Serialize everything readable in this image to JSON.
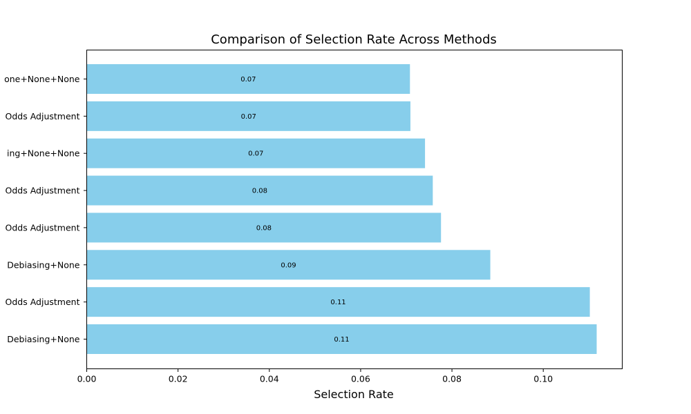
{
  "chart_data": {
    "type": "bar",
    "orientation": "horizontal",
    "title": "Comparison of Selection Rate Across Methods",
    "xlabel": "Selection Rate",
    "ylabel": "",
    "categories": [
      "one+None+None",
      "Odds Adjustment",
      "ing+None+None",
      "Odds Adjustment",
      "Odds Adjustment",
      "Debiasing+None",
      "Odds Adjustment",
      "Debiasing+None"
    ],
    "values": [
      0.0708,
      0.0709,
      0.0741,
      0.0758,
      0.0776,
      0.0884,
      0.1102,
      0.1117
    ],
    "data_labels": [
      "0.07",
      "0.07",
      "0.07",
      "0.08",
      "0.08",
      "0.09",
      "0.11",
      "0.11"
    ],
    "xlim": [
      0,
      0.1173
    ],
    "xticks": [
      0.0,
      0.02,
      0.04,
      0.06,
      0.08,
      0.1
    ],
    "xtick_labels": [
      "0.00",
      "0.02",
      "0.04",
      "0.06",
      "0.08",
      "0.10"
    ],
    "bar_color": "#87ceeb",
    "grid": false,
    "legend": "none"
  }
}
